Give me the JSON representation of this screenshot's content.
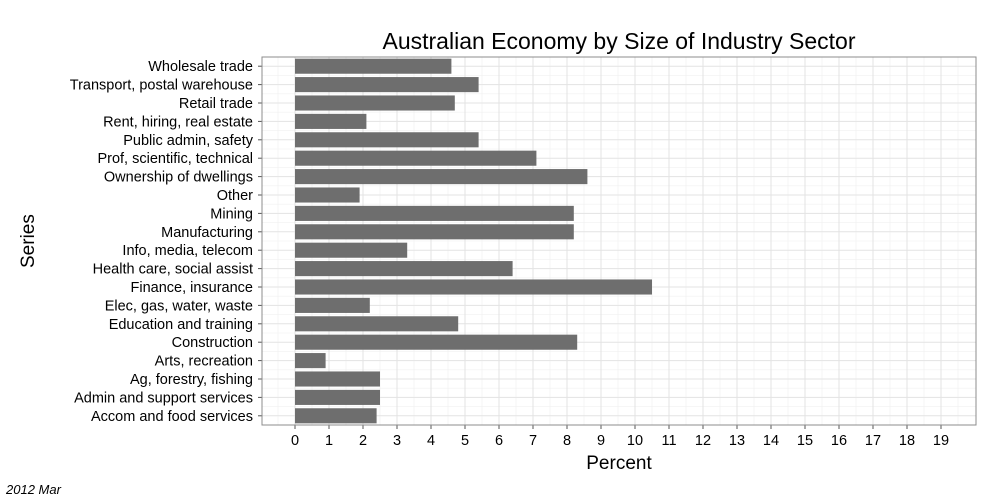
{
  "chart_data": {
    "type": "bar",
    "orientation": "horizontal",
    "title": "Australian Economy by Size of Industry Sector",
    "xlabel": "Percent",
    "ylabel": "Series",
    "caption": "2012 Mar",
    "xlim": [
      0,
      19
    ],
    "xticks": [
      0,
      1,
      2,
      3,
      4,
      5,
      6,
      7,
      8,
      9,
      10,
      11,
      12,
      13,
      14,
      15,
      16,
      17,
      18,
      19
    ],
    "grid": true,
    "legend": "none",
    "bar_color": "#6e6e6e",
    "grid_color": "#e3e3e3",
    "categories": [
      "Wholesale trade",
      "Transport, postal warehouse",
      "Retail trade",
      "Rent, hiring, real estate",
      "Public admin, safety",
      "Prof, scientific, technical",
      "Ownership of dwellings",
      "Other",
      "Mining",
      "Manufacturing",
      "Info, media, telecom",
      "Health care, social assist",
      "Finance, insurance",
      "Elec, gas, water, waste",
      "Education and training",
      "Construction",
      "Arts, recreation",
      "Ag, forestry, fishing",
      "Admin and support services",
      "Accom and food services"
    ],
    "values": [
      4.6,
      5.4,
      4.7,
      2.1,
      5.4,
      7.1,
      8.6,
      1.9,
      8.2,
      8.2,
      3.3,
      6.4,
      10.5,
      2.2,
      4.8,
      8.3,
      0.9,
      2.5,
      2.5,
      2.4
    ]
  }
}
